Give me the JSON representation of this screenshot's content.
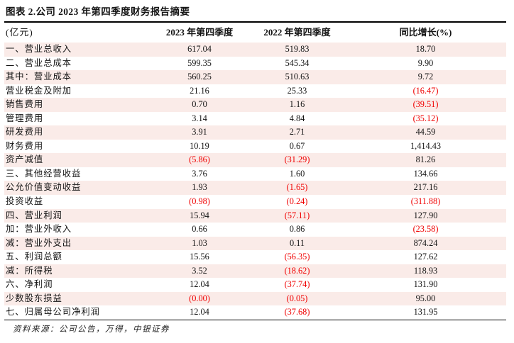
{
  "title": "图表 2.公司 2023 年第四季度财务报告摘要",
  "table": {
    "columns": [
      "(亿元)",
      "2023 年第四季度",
      "2022 年第四季度",
      "同比增长(%)"
    ],
    "rows": [
      [
        "一、营业总收入",
        "617.04",
        "519.83",
        "18.70"
      ],
      [
        "二、营业总成本",
        "599.35",
        "545.34",
        "9.90"
      ],
      [
        "其中：营业成本",
        "560.25",
        "510.63",
        "9.72"
      ],
      [
        "营业税金及附加",
        "21.16",
        "25.33",
        "(16.47)"
      ],
      [
        "销售费用",
        "0.70",
        "1.16",
        "(39.51)"
      ],
      [
        "管理费用",
        "3.14",
        "4.84",
        "(35.12)"
      ],
      [
        "研发费用",
        "3.91",
        "2.71",
        "44.59"
      ],
      [
        "财务费用",
        "10.19",
        "0.67",
        "1,414.43"
      ],
      [
        "资产减值",
        "(5.86)",
        "(31.29)",
        "81.26"
      ],
      [
        "三、其他经营收益",
        "3.76",
        "1.60",
        "134.66"
      ],
      [
        "公允价值变动收益",
        "1.93",
        "(1.65)",
        "217.16"
      ],
      [
        "投资收益",
        "(0.98)",
        "(0.24)",
        "(311.88)"
      ],
      [
        "四、营业利润",
        "15.94",
        "(57.11)",
        "127.90"
      ],
      [
        "加：营业外收入",
        "0.66",
        "0.86",
        "(23.58)"
      ],
      [
        "减：营业外支出",
        "1.03",
        "0.11",
        "874.24"
      ],
      [
        "五、利润总额",
        "15.56",
        "(56.35)",
        "127.62"
      ],
      [
        "减：所得税",
        "3.52",
        "(18.62)",
        "118.93"
      ],
      [
        "六、净利润",
        "12.04",
        "(37.74)",
        "131.90"
      ],
      [
        "少数股东损益",
        "(0.00)",
        "(0.05)",
        "95.00"
      ],
      [
        "七、归属母公司净利润",
        "12.04",
        "(37.68)",
        "131.95"
      ]
    ]
  },
  "footer": {
    "source": "资料来源：公司公告，万得，中银证券"
  },
  "colors": {
    "stripe": "#faebe8",
    "negative_red": "#f00000",
    "rule_black": "#000000"
  }
}
